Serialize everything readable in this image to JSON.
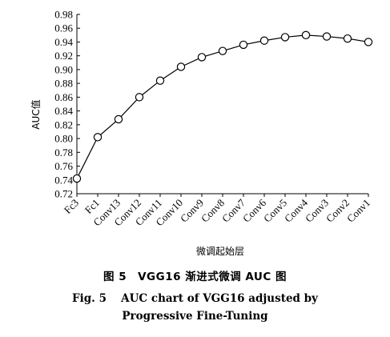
{
  "chart_data": {
    "type": "line",
    "xlabel": "微调起始层",
    "ylabel": "AUC值",
    "categories": [
      "Fc3",
      "Fc1",
      "Conv13",
      "Conv12",
      "Conv11",
      "Conv10",
      "Conv9",
      "Conv8",
      "Conv7",
      "Conv6",
      "Conv5",
      "Conv4",
      "Conv3",
      "Conv2",
      "Conv1"
    ],
    "values": [
      0.742,
      0.802,
      0.828,
      0.86,
      0.884,
      0.904,
      0.918,
      0.927,
      0.936,
      0.942,
      0.947,
      0.95,
      0.948,
      0.945,
      0.94
    ],
    "ylim": [
      0.72,
      0.98
    ],
    "yticks": [
      "0.72",
      "0.74",
      "0.76",
      "0.78",
      "0.80",
      "0.82",
      "0.84",
      "0.86",
      "0.88",
      "0.90",
      "0.92",
      "0.94",
      "0.96",
      "0.98"
    ],
    "marker": "open-circle",
    "grid": false,
    "line_color": "#000000"
  },
  "caption": {
    "cn": "图 5　VGG16 渐进式微调 AUC 图",
    "en_line1": "Fig. 5　 AUC chart of VGG16 adjusted by",
    "en_line2": "Progressive Fine-Tuning"
  }
}
